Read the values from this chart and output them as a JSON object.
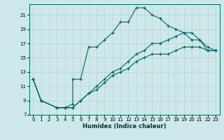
{
  "xlabel": "Humidex (Indice chaleur)",
  "ylabel": "",
  "background_color": "#cce8e8",
  "grid_color": "#c0d8d8",
  "line_color": "#006868",
  "xlim": [
    -0.5,
    23.5
  ],
  "ylim": [
    7,
    22.5
  ],
  "xticks": [
    0,
    1,
    2,
    3,
    4,
    5,
    6,
    7,
    8,
    9,
    10,
    11,
    12,
    13,
    14,
    15,
    16,
    17,
    18,
    19,
    20,
    21,
    22,
    23
  ],
  "yticks": [
    7,
    9,
    11,
    13,
    15,
    17,
    19,
    21
  ],
  "line1_x": [
    0,
    1,
    3,
    4,
    5,
    5,
    6,
    7,
    8,
    9,
    10,
    11,
    12,
    13,
    14,
    15,
    16,
    17,
    18,
    19,
    20,
    21,
    22,
    23
  ],
  "line1_y": [
    12,
    9,
    8,
    8,
    8.5,
    12,
    12,
    16.5,
    16.5,
    17.5,
    18.5,
    20,
    20,
    22,
    22,
    21,
    20.5,
    19.5,
    19,
    18.5,
    17.5,
    17.5,
    16,
    16
  ],
  "line2_x": [
    0,
    1,
    3,
    4,
    5,
    6,
    7,
    8,
    9,
    10,
    11,
    12,
    13,
    14,
    15,
    16,
    17,
    18,
    19,
    20,
    21,
    22,
    23
  ],
  "line2_y": [
    12,
    9,
    8,
    8,
    8,
    9,
    10,
    11,
    12,
    13,
    13.5,
    14.5,
    15.5,
    16,
    17,
    17,
    17.5,
    18,
    18.5,
    18.5,
    17.5,
    16.5,
    16
  ],
  "line3_x": [
    0,
    1,
    3,
    4,
    5,
    6,
    7,
    8,
    9,
    10,
    11,
    12,
    13,
    14,
    15,
    16,
    17,
    18,
    19,
    20,
    21,
    22,
    23
  ],
  "line3_y": [
    12,
    9,
    8,
    8,
    8,
    9,
    10,
    10.5,
    11.5,
    12.5,
    13,
    13.5,
    14.5,
    15,
    15.5,
    15.5,
    15.5,
    16,
    16.5,
    16.5,
    16.5,
    16,
    16
  ]
}
